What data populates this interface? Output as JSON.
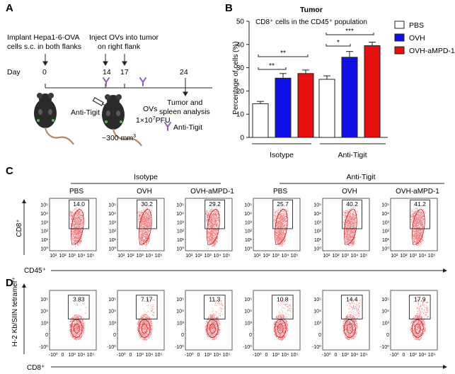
{
  "panels": {
    "a": {
      "letter": "A",
      "implant_text": [
        "Implant Hepa1-6-OVA",
        "cells s.c. in both flanks"
      ],
      "inject_text": [
        "Inject OVs into tumor",
        "on right flank"
      ],
      "day_label": "Day",
      "days": [
        "0",
        "14",
        "17",
        "24"
      ],
      "analysis_text": [
        "Tumor and",
        "spleen analysis"
      ],
      "anti_tigit_label": "Anti-Tigit",
      "ovs_label": "OVs",
      "pfu_label": "1×10",
      "pfu_exp": "7",
      "pfu_unit": "PFU",
      "volume_label": "~300 mm",
      "volume_exp": "3",
      "legend_anti_tigit": "Anti-Tigit"
    },
    "b": {
      "letter": "B",
      "title": "Tumor",
      "subtitle": "CD8⁺ cells in the CD45⁺ population",
      "ylabel": "Percentage of cells (%)",
      "yticks": [
        "0",
        "10",
        "20",
        "30",
        "40",
        "50"
      ],
      "groups": [
        "Isotype",
        "Anti-Tigit"
      ],
      "sig": [
        "**",
        "**",
        "*",
        "***"
      ]
    },
    "c": {
      "letter": "C",
      "group_isotype": "Isotype",
      "group_anti_tigit": "Anti-Tigit",
      "col_labels": [
        "PBS",
        "OVH",
        "OVH-aMPD-1",
        "PBS",
        "OVH",
        "OVH-aMPD-1"
      ],
      "gate_values": [
        "14.0",
        "30.2",
        "29.2",
        "25.7",
        "40.2",
        "41.2"
      ],
      "ylabel": "CD8⁺",
      "xlabel": "CD45⁺",
      "yticks": [
        "10⁰",
        "10¹",
        "10²",
        "10³",
        "10⁴",
        "10⁵"
      ],
      "xticks": [
        "10¹",
        "10²",
        "10³",
        "10⁴",
        "10⁵"
      ]
    },
    "d": {
      "letter": "D",
      "gate_values": [
        "3.83",
        "7.17",
        "11.3",
        "10.8",
        "14.4",
        "17.9"
      ],
      "ylabel": "H-2 Kb/SIIN tetramer⁺",
      "xlabel": "CD8⁺",
      "yticks": [
        "-10⁰",
        "0",
        "10³",
        "10⁴",
        "10⁵"
      ],
      "xticks": [
        "-10⁰",
        "0",
        "10³",
        "10⁴",
        "10⁵"
      ]
    }
  },
  "colors": {
    "pbs": "#ffffff",
    "ovh": "#1010e6",
    "ovh_ampd1": "#e61010",
    "flow": "#e8141c",
    "tigit_icon": "#8e5fb5"
  },
  "chart_data": {
    "type": "bar",
    "title": "Tumor",
    "subtitle": "CD8⁺ cells in the CD45⁺ population",
    "ylabel": "Percentage of cells (%)",
    "xlabel": "",
    "ylim": [
      0,
      50
    ],
    "categories": [
      "Isotype",
      "Anti-Tigit"
    ],
    "series": [
      {
        "name": "PBS",
        "values": [
          14.5,
          25.0
        ],
        "errors": [
          1.0,
          1.5
        ]
      },
      {
        "name": "OVH",
        "values": [
          25.5,
          34.5
        ],
        "errors": [
          2.0,
          2.5
        ]
      },
      {
        "name": "OVH-aMPD-1",
        "values": [
          27.5,
          39.5
        ],
        "errors": [
          1.5,
          1.5
        ]
      }
    ],
    "legend_position": "top-right",
    "grid": false
  }
}
